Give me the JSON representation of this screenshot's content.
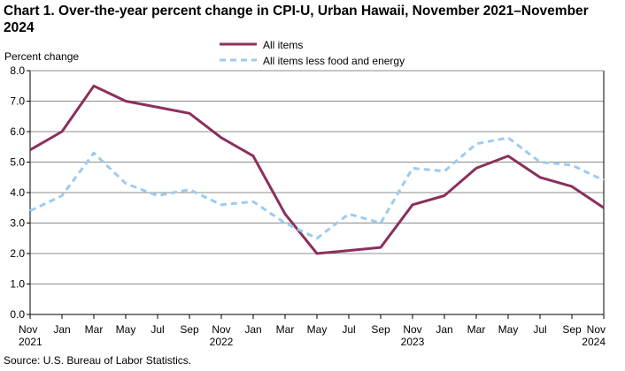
{
  "chart_data": {
    "type": "line",
    "title": "Chart 1. Over-the-year percent change in CPI-U, Urban Hawaii, November 2021–November 2024",
    "ylabel": "Percent change",
    "xlabel": "",
    "ylim": [
      0,
      8
    ],
    "yticks": [
      "0.0",
      "1.0",
      "2.0",
      "3.0",
      "4.0",
      "5.0",
      "6.0",
      "7.0",
      "8.0"
    ],
    "grid": true,
    "legend_position": "top-center",
    "x": [
      "Nov 2021",
      "Jan",
      "Mar",
      "May",
      "Jul",
      "Sep",
      "Nov 2022",
      "Jan",
      "Mar",
      "May",
      "Jul",
      "Sep",
      "Nov 2023",
      "Jan",
      "Mar",
      "May",
      "Jul",
      "Sep",
      "Nov 2024"
    ],
    "x_tick_labels": [
      {
        "month": "Nov",
        "year": "2021"
      },
      {
        "month": "Jan",
        "year": ""
      },
      {
        "month": "Mar",
        "year": ""
      },
      {
        "month": "May",
        "year": ""
      },
      {
        "month": "Jul",
        "year": ""
      },
      {
        "month": "Sep",
        "year": ""
      },
      {
        "month": "Nov",
        "year": "2022"
      },
      {
        "month": "Jan",
        "year": ""
      },
      {
        "month": "Mar",
        "year": ""
      },
      {
        "month": "May",
        "year": ""
      },
      {
        "month": "Jul",
        "year": ""
      },
      {
        "month": "Sep",
        "year": ""
      },
      {
        "month": "Nov",
        "year": "2023"
      },
      {
        "month": "Jan",
        "year": ""
      },
      {
        "month": "Mar",
        "year": ""
      },
      {
        "month": "May",
        "year": ""
      },
      {
        "month": "Jul",
        "year": ""
      },
      {
        "month": "Sep",
        "year": ""
      },
      {
        "month": "Nov",
        "year": "2024"
      }
    ],
    "series": [
      {
        "name": "All items",
        "color": "#8b2f5c",
        "style": "solid",
        "values": [
          5.4,
          6.0,
          7.5,
          7.0,
          6.8,
          6.6,
          5.8,
          5.2,
          3.3,
          2.0,
          2.1,
          2.2,
          3.6,
          3.9,
          4.8,
          5.2,
          4.5,
          4.2,
          3.5
        ]
      },
      {
        "name": "All items less food and energy",
        "color": "#9dcbf0",
        "style": "dashed",
        "values": [
          3.4,
          3.9,
          5.3,
          4.3,
          3.9,
          4.1,
          3.6,
          3.7,
          3.0,
          2.5,
          3.3,
          3.0,
          4.8,
          4.7,
          5.6,
          5.8,
          5.0,
          4.9,
          4.4
        ]
      }
    ],
    "source": "Source: U.S. Bureau of Labor Statistics."
  }
}
